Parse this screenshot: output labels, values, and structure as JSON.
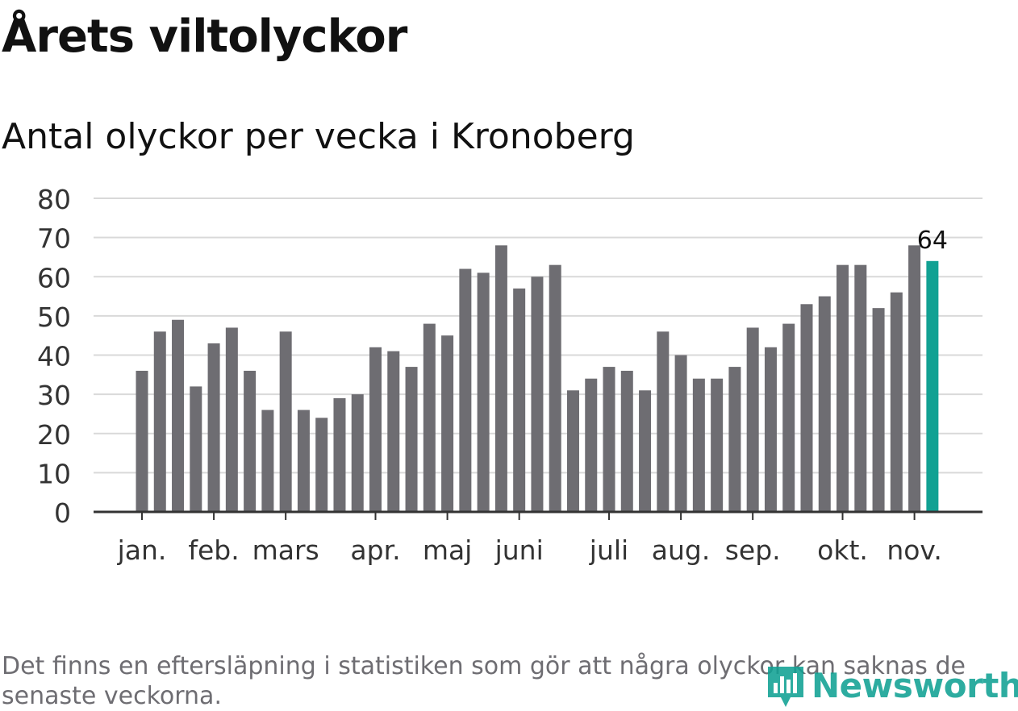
{
  "header": {
    "title": "Årets viltolyckor",
    "subtitle": "Antal olyckor per vecka i Kronoberg"
  },
  "footer": {
    "note": "Det finns en eftersläpning i statistiken som gör att några olyckor kan saknas de senaste veckorna.",
    "brand": "Newsworthy"
  },
  "colors": {
    "bar": "#6e6d72",
    "highlight": "#11a193",
    "grid": "#d9d9d9",
    "axis": "#333333"
  },
  "chart_data": {
    "type": "bar",
    "title": "Antal olyckor per vecka i Kronoberg",
    "xlabel": "",
    "ylabel": "",
    "ylim": [
      0,
      80
    ],
    "yticks": [
      0,
      10,
      20,
      30,
      40,
      50,
      60,
      70,
      80
    ],
    "grid": true,
    "weeks": [
      1,
      2,
      3,
      4,
      5,
      6,
      7,
      8,
      9,
      10,
      11,
      12,
      13,
      14,
      15,
      16,
      17,
      18,
      19,
      20,
      21,
      22,
      23,
      24,
      25,
      26,
      27,
      28,
      29,
      30,
      31,
      32,
      33,
      34,
      35,
      36,
      37,
      38,
      39,
      40,
      41,
      42,
      43,
      44,
      45
    ],
    "values": [
      36,
      46,
      49,
      32,
      43,
      47,
      36,
      26,
      46,
      26,
      24,
      29,
      30,
      42,
      41,
      37,
      48,
      45,
      62,
      61,
      68,
      57,
      60,
      63,
      31,
      34,
      37,
      36,
      31,
      46,
      40,
      34,
      34,
      37,
      47,
      42,
      48,
      53,
      55,
      63,
      63,
      52,
      56,
      68,
      64
    ],
    "highlight_index": 44,
    "highlight_label": "64",
    "month_labels": [
      {
        "label": "jan.",
        "week": 1
      },
      {
        "label": "feb.",
        "week": 5
      },
      {
        "label": "mars",
        "week": 9
      },
      {
        "label": "apr.",
        "week": 14
      },
      {
        "label": "maj",
        "week": 18
      },
      {
        "label": "juni",
        "week": 22
      },
      {
        "label": "juli",
        "week": 27
      },
      {
        "label": "aug.",
        "week": 31
      },
      {
        "label": "sep.",
        "week": 35
      },
      {
        "label": "okt.",
        "week": 40
      },
      {
        "label": "nov.",
        "week": 44
      }
    ]
  }
}
